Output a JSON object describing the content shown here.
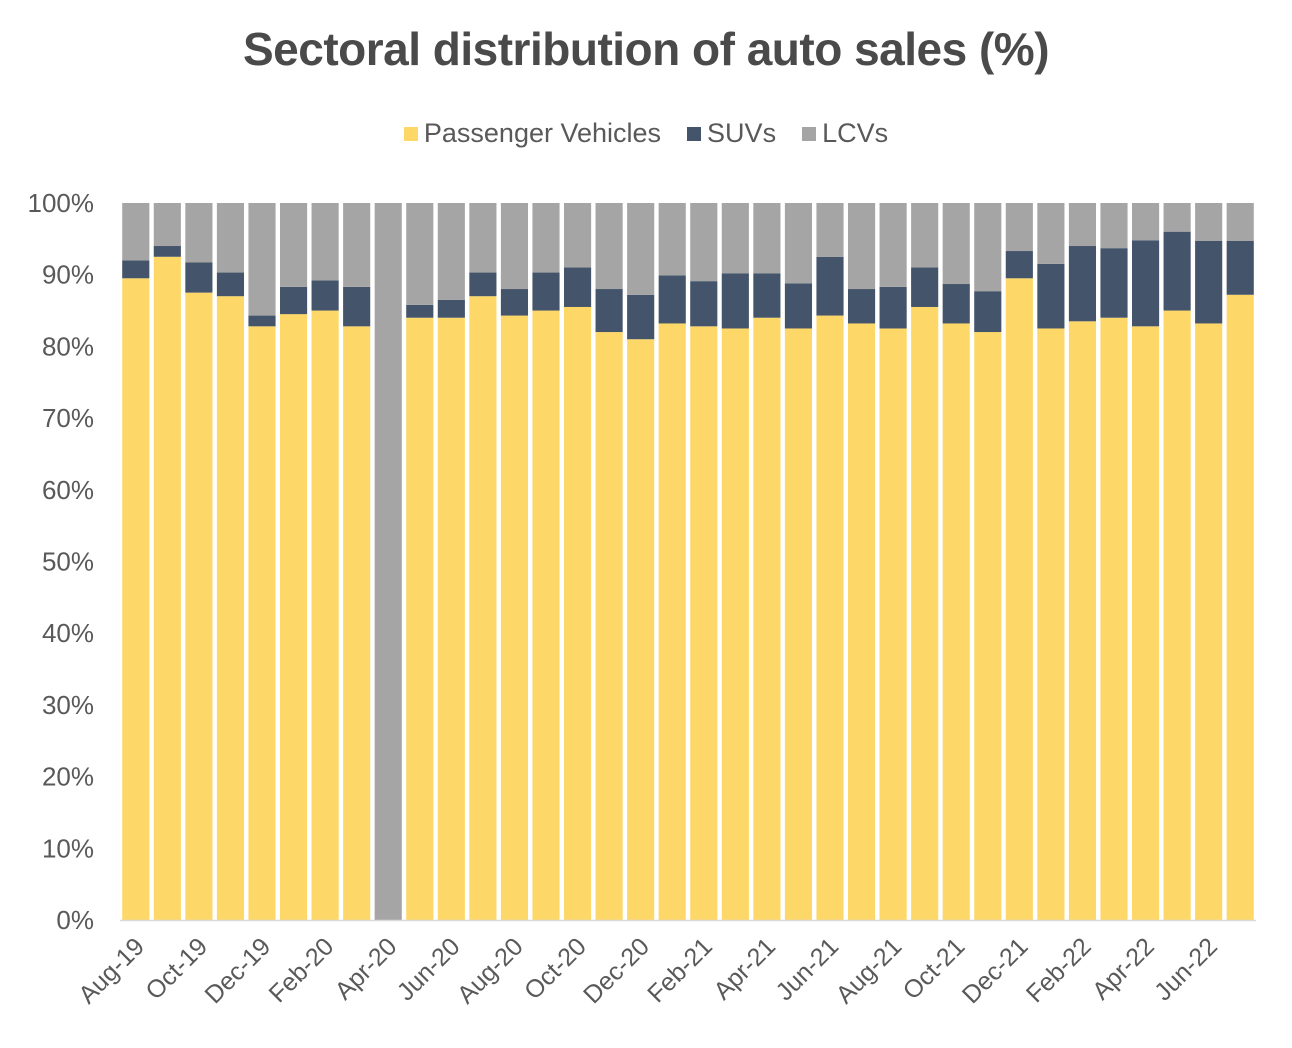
{
  "chart_data": {
    "type": "bar",
    "stacked": true,
    "title": "Sectoral distribution of auto sales (%)",
    "xlabel": "",
    "ylabel": "",
    "ylim": [
      0,
      100
    ],
    "y_ticks": [
      "0%",
      "10%",
      "20%",
      "30%",
      "40%",
      "50%",
      "60%",
      "70%",
      "80%",
      "90%",
      "100%"
    ],
    "legend_position": "top-center",
    "grid": false,
    "categories": [
      "Aug-19",
      "Sep-19",
      "Oct-19",
      "Nov-19",
      "Dec-19",
      "Jan-20",
      "Feb-20",
      "Mar-20",
      "Apr-20",
      "May-20",
      "Jun-20",
      "Jul-20",
      "Aug-20",
      "Sep-20",
      "Oct-20",
      "Nov-20",
      "Dec-20",
      "Jan-21",
      "Feb-21",
      "Mar-21",
      "Apr-21",
      "May-21",
      "Jun-21",
      "Jul-21",
      "Aug-21",
      "Sep-21",
      "Oct-21",
      "Nov-21",
      "Dec-21",
      "Jan-22",
      "Feb-22",
      "Mar-22",
      "Apr-22",
      "May-22",
      "Jun-22",
      "Jul-22"
    ],
    "x_tick_labels": [
      "Aug-19",
      "",
      "Oct-19",
      "",
      "Dec-19",
      "",
      "Feb-20",
      "",
      "Apr-20",
      "",
      "Jun-20",
      "",
      "Aug-20",
      "",
      "Oct-20",
      "",
      "Dec-20",
      "",
      "Feb-21",
      "",
      "Apr-21",
      "",
      "Jun-21",
      "",
      "Aug-21",
      "",
      "Oct-21",
      "",
      "Dec-21",
      "",
      "Feb-22",
      "",
      "Apr-22",
      "",
      "Jun-22",
      ""
    ],
    "series": [
      {
        "name": "Passenger Vehicles",
        "color": "#FDD868",
        "values": [
          89.5,
          92.5,
          87.5,
          87.0,
          82.8,
          84.5,
          85.0,
          82.8,
          0,
          84.0,
          84.0,
          87.0,
          84.3,
          85.0,
          85.5,
          82.0,
          81.0,
          83.2,
          82.8,
          82.5,
          84.0,
          82.5,
          84.3,
          83.2,
          82.5,
          85.5,
          83.2,
          82.0,
          89.5,
          82.5,
          83.5,
          84.0,
          82.8,
          85.0,
          83.2,
          87.2
        ]
      },
      {
        "name": "SUVs",
        "color": "#44546A",
        "values": [
          2.5,
          1.5,
          4.2,
          3.3,
          1.5,
          3.8,
          4.2,
          5.5,
          0,
          1.8,
          2.5,
          3.3,
          3.7,
          5.3,
          5.5,
          6.0,
          6.2,
          6.7,
          6.3,
          7.7,
          6.2,
          6.3,
          8.2,
          4.8,
          5.8,
          5.5,
          5.5,
          5.7,
          3.8,
          9.0,
          10.5,
          9.7,
          12.0,
          11.0,
          11.5,
          7.5
        ]
      },
      {
        "name": "LCVs",
        "color": "#A5A5A5",
        "values": [
          8.0,
          6.0,
          8.3,
          9.7,
          15.7,
          11.7,
          10.8,
          11.7,
          100,
          14.2,
          13.5,
          9.7,
          12.0,
          9.7,
          9.0,
          12.0,
          12.8,
          10.1,
          10.9,
          9.8,
          9.8,
          11.2,
          7.5,
          12.0,
          11.7,
          9.0,
          11.3,
          12.3,
          6.7,
          8.5,
          6.0,
          6.3,
          5.2,
          4.0,
          5.3,
          5.3
        ]
      }
    ]
  }
}
